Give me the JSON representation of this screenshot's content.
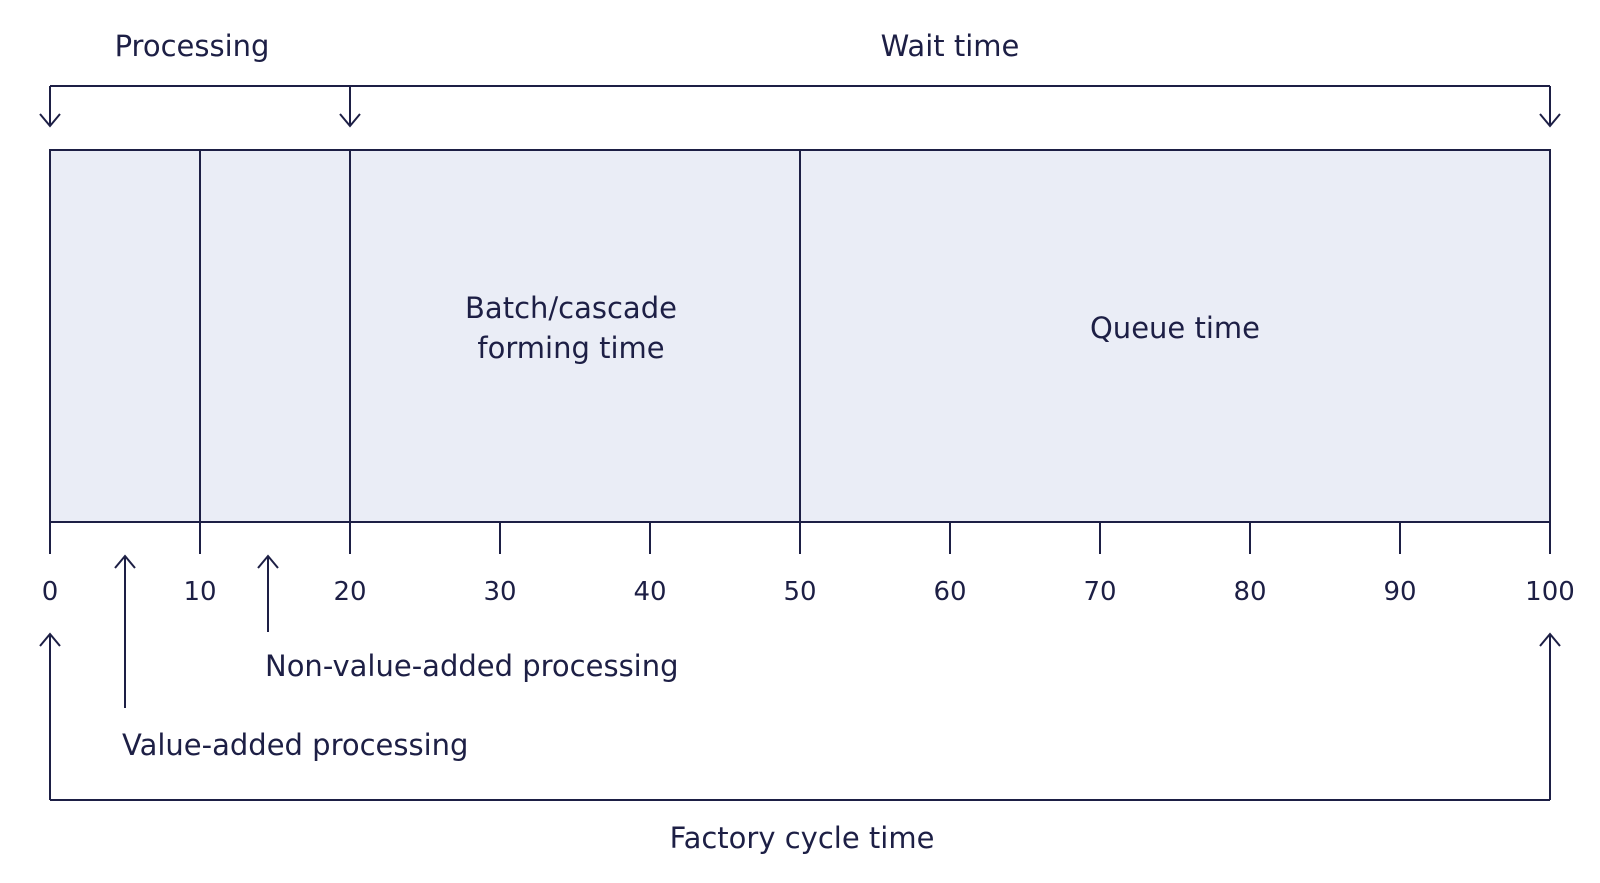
{
  "labels": {
    "processing": "Processing",
    "wait_time": "Wait time",
    "batch_line1": "Batch/cascade",
    "batch_line2": "forming time",
    "queue_time": "Queue time",
    "non_value_added": "Non-value-added processing",
    "value_added": "Value-added processing",
    "factory_cycle_time": "Factory cycle time"
  },
  "axis": {
    "ticks": [
      "0",
      "10",
      "20",
      "30",
      "40",
      "50",
      "60",
      "70",
      "80",
      "90",
      "100"
    ]
  },
  "segments": [
    {
      "label": "Value-added processing",
      "start": 0,
      "end": 10
    },
    {
      "label": "Non-value-added processing",
      "start": 10,
      "end": 20
    },
    {
      "label": "Batch/cascade forming time",
      "start": 20,
      "end": 50
    },
    {
      "label": "Queue time",
      "start": 50,
      "end": 100
    }
  ],
  "brackets": {
    "processing": {
      "start": 0,
      "end": 20
    },
    "wait_time": {
      "start": 20,
      "end": 100
    },
    "factory_cycle_time": {
      "start": 0,
      "end": 100
    }
  },
  "colors": {
    "ink": "#1d1f45",
    "bar_fill": "#eaedf6",
    "background": "#ffffff"
  }
}
